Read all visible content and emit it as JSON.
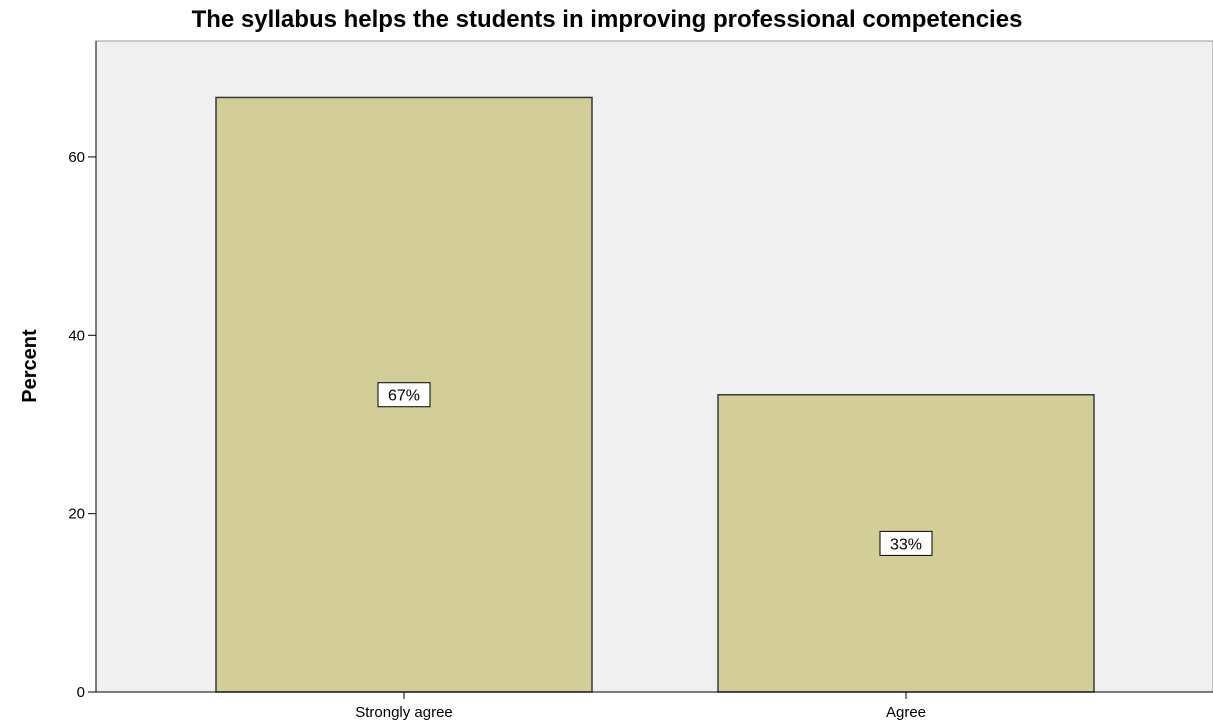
{
  "chart_data": {
    "type": "bar",
    "title": "The syllabus helps the students in improving professional competencies",
    "xlabel": "",
    "ylabel": "Percent",
    "categories": [
      "Strongly agree",
      "Agree"
    ],
    "values": [
      66.67,
      33.33
    ],
    "data_labels": [
      "67%",
      "33%"
    ],
    "yticks": [
      0,
      20,
      40,
      60
    ],
    "ylim": [
      0,
      73
    ],
    "grid": false,
    "legend": "none",
    "colors": {
      "bar_fill": "#d3cd98",
      "bar_stroke": "#3a3a3a",
      "plot_background": "#f0f0f0",
      "axis": "#000000"
    }
  }
}
